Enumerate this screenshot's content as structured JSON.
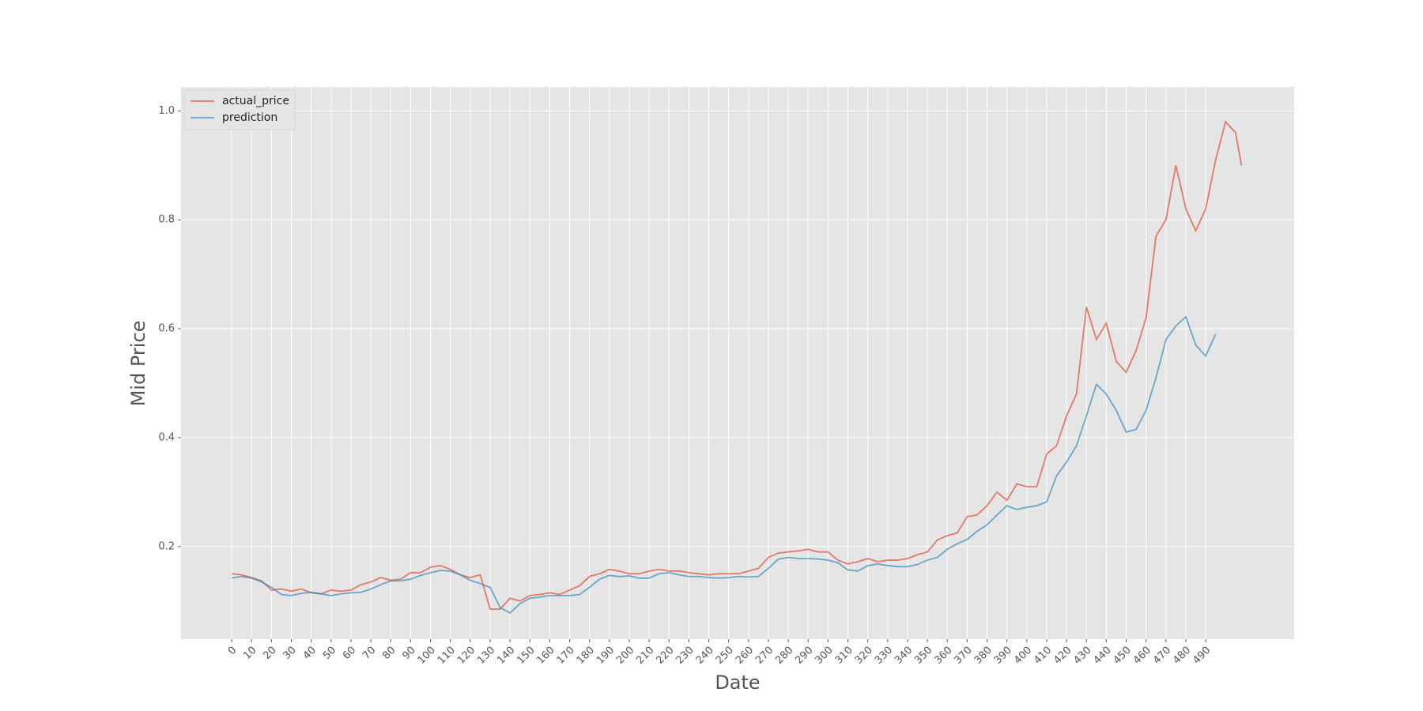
{
  "chart_data": {
    "type": "line",
    "xlabel": "Date",
    "ylabel": "Mid Price",
    "x": [
      0,
      5,
      10,
      15,
      20,
      25,
      30,
      35,
      40,
      45,
      50,
      55,
      60,
      65,
      70,
      75,
      80,
      85,
      90,
      95,
      100,
      105,
      110,
      115,
      120,
      125,
      130,
      135,
      140,
      145,
      150,
      155,
      160,
      165,
      170,
      175,
      180,
      185,
      190,
      195,
      200,
      205,
      210,
      215,
      220,
      225,
      230,
      235,
      240,
      245,
      250,
      255,
      260,
      265,
      270,
      275,
      280,
      285,
      290,
      295,
      300,
      305,
      310,
      315,
      320,
      325,
      330,
      335,
      340,
      345,
      350,
      355,
      360,
      365,
      370,
      375,
      380,
      385,
      390,
      395,
      400,
      405,
      410,
      415,
      420,
      425,
      430,
      435,
      440,
      445,
      450,
      455,
      460,
      465,
      470,
      475,
      480,
      485,
      490,
      495,
      500,
      505,
      508
    ],
    "series": [
      {
        "name": "actual_price",
        "color": "#E24A33",
        "values": [
          0.15,
          0.148,
          0.143,
          0.137,
          0.12,
          0.122,
          0.118,
          0.122,
          0.115,
          0.113,
          0.12,
          0.118,
          0.12,
          0.13,
          0.135,
          0.143,
          0.138,
          0.14,
          0.152,
          0.152,
          0.162,
          0.165,
          0.158,
          0.148,
          0.143,
          0.148,
          0.085,
          0.085,
          0.105,
          0.1,
          0.11,
          0.112,
          0.115,
          0.112,
          0.12,
          0.128,
          0.145,
          0.15,
          0.158,
          0.155,
          0.15,
          0.15,
          0.155,
          0.158,
          0.155,
          0.155,
          0.152,
          0.15,
          0.148,
          0.15,
          0.15,
          0.15,
          0.155,
          0.16,
          0.18,
          0.188,
          0.19,
          0.192,
          0.195,
          0.19,
          0.19,
          0.175,
          0.168,
          0.172,
          0.178,
          0.172,
          0.175,
          0.175,
          0.178,
          0.185,
          0.19,
          0.212,
          0.22,
          0.225,
          0.255,
          0.258,
          0.275,
          0.3,
          0.285,
          0.315,
          0.31,
          0.31,
          0.37,
          0.385,
          0.44,
          0.48,
          0.64,
          0.58,
          0.61,
          0.54,
          0.52,
          0.56,
          0.62,
          0.77,
          0.8,
          0.9,
          0.82,
          0.78,
          0.82,
          0.91,
          0.98,
          0.96,
          0.9
        ]
      },
      {
        "name": "prediction",
        "color": "#348ABD",
        "values": [
          0.142,
          0.145,
          0.142,
          0.135,
          0.125,
          0.112,
          0.11,
          0.114,
          0.116,
          0.113,
          0.11,
          0.113,
          0.115,
          0.116,
          0.122,
          0.13,
          0.137,
          0.137,
          0.14,
          0.147,
          0.152,
          0.156,
          0.155,
          0.148,
          0.138,
          0.132,
          0.125,
          0.088,
          0.078,
          0.095,
          0.105,
          0.107,
          0.11,
          0.11,
          0.11,
          0.112,
          0.125,
          0.14,
          0.147,
          0.145,
          0.146,
          0.142,
          0.142,
          0.15,
          0.152,
          0.148,
          0.145,
          0.145,
          0.143,
          0.142,
          0.143,
          0.145,
          0.144,
          0.145,
          0.16,
          0.177,
          0.18,
          0.178,
          0.178,
          0.177,
          0.175,
          0.17,
          0.157,
          0.155,
          0.165,
          0.168,
          0.165,
          0.163,
          0.163,
          0.167,
          0.175,
          0.18,
          0.195,
          0.205,
          0.213,
          0.228,
          0.24,
          0.258,
          0.275,
          0.268,
          0.272,
          0.275,
          0.282,
          0.33,
          0.355,
          0.385,
          0.44,
          0.498,
          0.48,
          0.45,
          0.41,
          0.415,
          0.45,
          0.51,
          0.58,
          0.605,
          0.622,
          0.57,
          0.55,
          0.59,
          null,
          null,
          null
        ]
      }
    ],
    "xlim": [
      -25.5,
      534.5
    ],
    "xticks": [
      0,
      10,
      20,
      30,
      40,
      50,
      60,
      70,
      80,
      90,
      100,
      110,
      120,
      130,
      140,
      150,
      160,
      170,
      180,
      190,
      200,
      210,
      220,
      230,
      240,
      250,
      260,
      270,
      280,
      290,
      300,
      310,
      320,
      330,
      340,
      350,
      360,
      370,
      380,
      390,
      400,
      410,
      420,
      430,
      440,
      450,
      460,
      470,
      480,
      490
    ],
    "ylim": [
      0.03,
      1.044
    ],
    "yticks": [
      0.2,
      0.4,
      0.6,
      0.8,
      {
        "value": 1,
        "label": "1.0"
      }
    ],
    "grid": true,
    "legend": "upper left"
  }
}
